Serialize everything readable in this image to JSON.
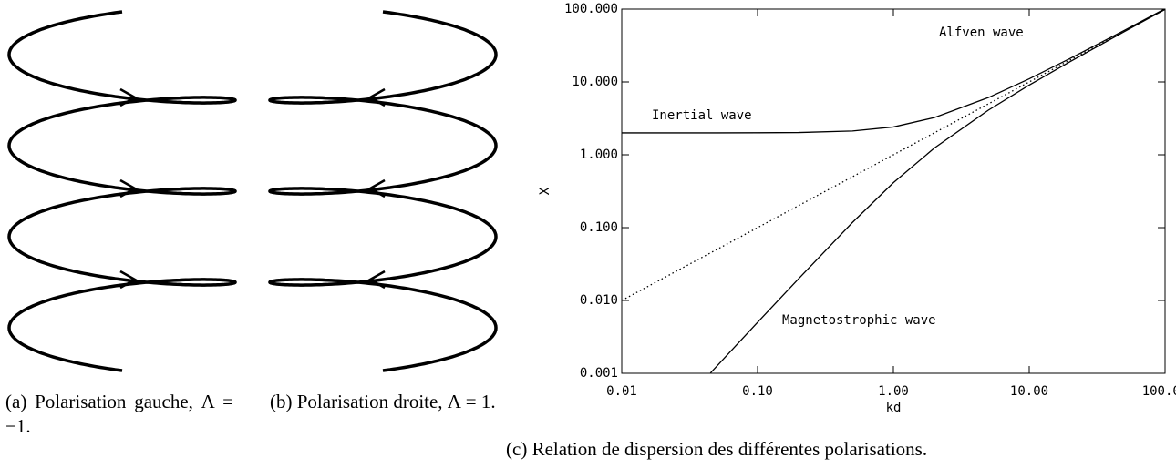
{
  "figures": [
    {
      "label": "(a)",
      "text": "Polarisation gauche, Λ = −1."
    },
    {
      "label": "(b)",
      "text": "Polarisation droite, Λ = 1."
    },
    {
      "label": "(c)",
      "text": "Relation de dispersion des différentes polarisations."
    }
  ],
  "chart_data": {
    "type": "line",
    "log_x": true,
    "log_y": true,
    "x_label": "kd",
    "y_label": "X",
    "xlim": [
      0.01,
      100
    ],
    "ylim": [
      0.001,
      100
    ],
    "xticks": [
      {
        "value": 0.01,
        "label": "0.01"
      },
      {
        "value": 0.1,
        "label": "0.10"
      },
      {
        "value": 1,
        "label": "1.00"
      },
      {
        "value": 10,
        "label": "10.00"
      },
      {
        "value": 100,
        "label": "100.00"
      }
    ],
    "yticks": [
      {
        "value": 0.001,
        "label": "0.001"
      },
      {
        "value": 0.01,
        "label": "0.010"
      },
      {
        "value": 0.1,
        "label": "0.100"
      },
      {
        "value": 1,
        "label": "1.000"
      },
      {
        "value": 10,
        "label": "10.000"
      },
      {
        "value": 100,
        "label": "100.000"
      }
    ],
    "series": [
      {
        "name": "Inertial wave",
        "color": "#000000",
        "dash": "solid",
        "x": [
          0.01,
          0.02,
          0.05,
          0.1,
          0.2,
          0.5,
          1,
          2,
          5,
          10,
          20,
          50,
          100
        ],
        "values": [
          2.0,
          2.0,
          2.0,
          2.005,
          2.02,
          2.12,
          2.41,
          3.24,
          6.1,
          11.05,
          21.02,
          51.01,
          101
        ]
      },
      {
        "name": "Magnetostrophic wave",
        "color": "#000000",
        "dash": "solid",
        "x": [
          0.045,
          0.1,
          0.2,
          0.5,
          1,
          2,
          5,
          10,
          20,
          50,
          100
        ],
        "values": [
          0.00101,
          0.005,
          0.0198,
          0.118,
          0.414,
          1.236,
          4.099,
          9.05,
          19.02,
          49.01,
          99.0
        ]
      },
      {
        "name": "Alfven wave",
        "color": "#000000",
        "dash": "dotted",
        "x": [
          0.01,
          100
        ],
        "values": [
          0.01,
          100
        ]
      }
    ]
  }
}
